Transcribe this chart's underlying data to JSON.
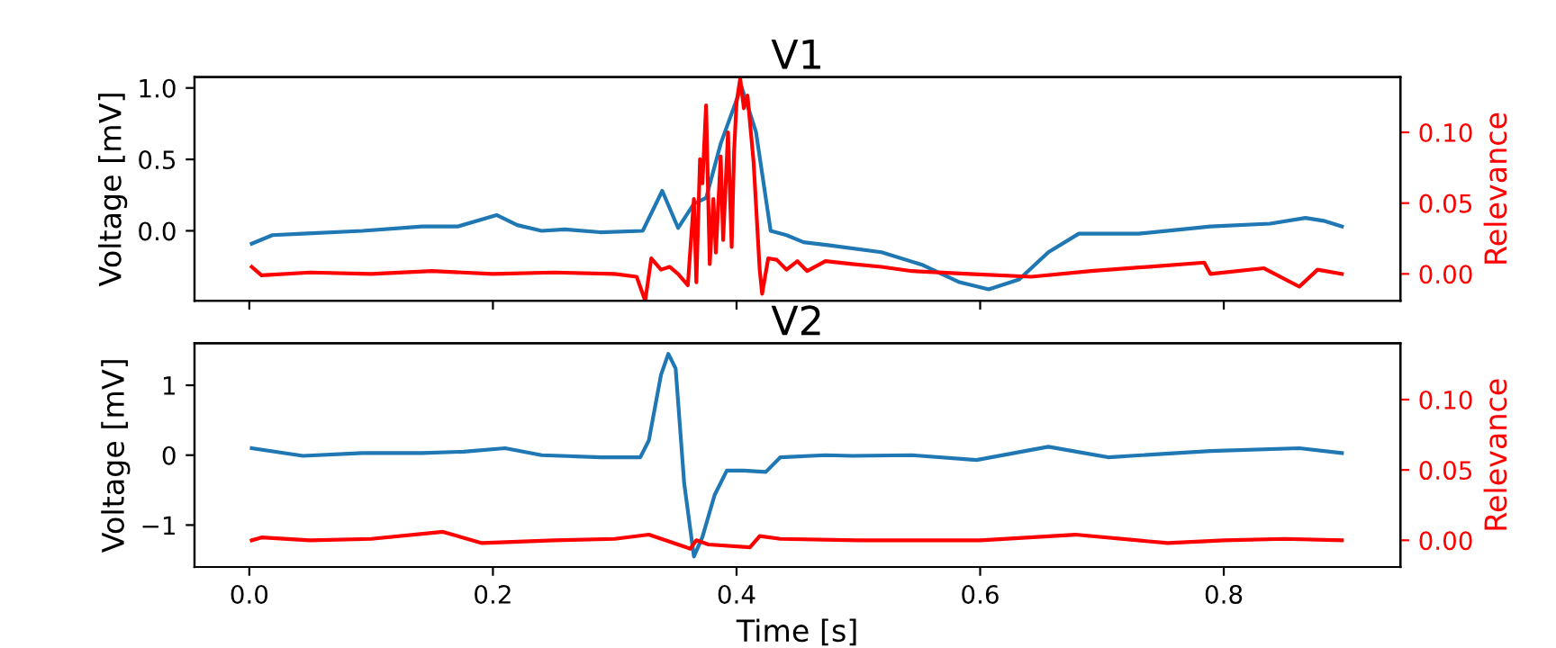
{
  "chart_data": [
    {
      "type": "line",
      "title": "V1",
      "ylabel": "Voltage [mV]",
      "y2label": "Relevance",
      "xlim": [
        -0.045,
        0.945
      ],
      "xticks": [
        {
          "value": 0,
          "label": null
        },
        {
          "value": 0.2,
          "label": null
        },
        {
          "value": 0.4,
          "label": null
        },
        {
          "value": 0.6,
          "label": null
        },
        {
          "value": 0.8,
          "label": null
        }
      ],
      "ylim": [
        -0.49,
        1.076
      ],
      "yticks": [
        {
          "value": 0,
          "label": "0.0"
        },
        {
          "value": 0.5,
          "label": "0.5"
        },
        {
          "value": 1,
          "label": "1.0"
        }
      ],
      "y2lim": [
        -0.019,
        0.139
      ],
      "y2ticks": [
        {
          "value": 0,
          "label": "0.00"
        },
        {
          "value": 0.05,
          "label": "0.05"
        },
        {
          "value": 0.1,
          "label": "0.10"
        }
      ],
      "tick_labels": "y",
      "series": [
        {
          "color": "#1f77b4",
          "x": [
            0.002,
            0.019,
            0.044,
            0.093,
            0.142,
            0.171,
            0.203,
            0.22,
            0.24,
            0.259,
            0.288,
            0.323,
            0.339,
            0.352,
            0.365,
            0.375,
            0.387,
            0.404,
            0.416,
            0.428,
            0.441,
            0.455,
            0.475,
            0.519,
            0.553,
            0.583,
            0.607,
            0.632,
            0.656,
            0.681,
            0.73,
            0.789,
            0.838,
            0.867,
            0.882,
            0.897
          ],
          "values": [
            -0.09,
            -0.03,
            -0.02,
            0.0,
            0.03,
            0.03,
            0.11,
            0.04,
            0.0,
            0.01,
            -0.01,
            0.0,
            0.28,
            0.02,
            0.19,
            0.23,
            0.61,
            1.01,
            0.69,
            0.0,
            -0.03,
            -0.08,
            -0.1,
            -0.15,
            -0.24,
            -0.36,
            -0.41,
            -0.34,
            -0.15,
            -0.02,
            -0.02,
            0.03,
            0.05,
            0.09,
            0.07,
            0.03
          ]
        },
        {
          "color": "#ff0000",
          "axis": "y2",
          "x": [
            0.002,
            0.01,
            0.05,
            0.1,
            0.15,
            0.2,
            0.25,
            0.3,
            0.318,
            0.325,
            0.33,
            0.338,
            0.345,
            0.352,
            0.36,
            0.365,
            0.367,
            0.37,
            0.372,
            0.375,
            0.378,
            0.381,
            0.383,
            0.387,
            0.389,
            0.393,
            0.396,
            0.398,
            0.4,
            0.403,
            0.406,
            0.409,
            0.414,
            0.419,
            0.421,
            0.426,
            0.433,
            0.441,
            0.45,
            0.458,
            0.473,
            0.495,
            0.519,
            0.544,
            0.591,
            0.642,
            0.691,
            0.784,
            0.789,
            0.833,
            0.862,
            0.877,
            0.897
          ],
          "values": [
            0.005,
            -0.001,
            0.001,
            0.0,
            0.002,
            0.0,
            0.001,
            0.0,
            -0.002,
            -0.019,
            0.011,
            0.003,
            0.005,
            0.0,
            -0.008,
            0.053,
            -0.006,
            0.081,
            0.064,
            0.119,
            0.007,
            0.053,
            0.015,
            0.083,
            0.024,
            0.1,
            0.019,
            0.087,
            0.121,
            0.138,
            0.117,
            0.126,
            0.079,
            0.003,
            -0.014,
            0.011,
            0.01,
            0.003,
            0.009,
            0.002,
            0.009,
            0.007,
            0.005,
            0.002,
            0.0,
            -0.002,
            0.002,
            0.008,
            0.0,
            0.004,
            -0.009,
            0.003,
            0.0
          ]
        }
      ]
    },
    {
      "type": "line",
      "title": "V2",
      "xlabel": "Time [s]",
      "ylabel": "Voltage [mV]",
      "y2label": "Relevance",
      "xlim": [
        -0.045,
        0.945
      ],
      "xticks": [
        {
          "value": 0,
          "label": "0.0"
        },
        {
          "value": 0.2,
          "label": "0.2"
        },
        {
          "value": 0.4,
          "label": "0.4"
        },
        {
          "value": 0.6,
          "label": "0.6"
        },
        {
          "value": 0.8,
          "label": "0.8"
        }
      ],
      "ylim": [
        -1.6,
        1.6
      ],
      "yticks": [
        {
          "value": -1,
          "label": "−1"
        },
        {
          "value": 0,
          "label": "0"
        },
        {
          "value": 1,
          "label": "1"
        }
      ],
      "y2lim": [
        -0.019,
        0.14
      ],
      "y2ticks": [
        {
          "value": 0,
          "label": "0.00"
        },
        {
          "value": 0.05,
          "label": "0.05"
        },
        {
          "value": 0.1,
          "label": "0.10"
        }
      ],
      "series": [
        {
          "color": "#1f77b4",
          "x": [
            0.002,
            0.044,
            0.093,
            0.142,
            0.176,
            0.21,
            0.24,
            0.289,
            0.321,
            0.328,
            0.338,
            0.344,
            0.35,
            0.357,
            0.365,
            0.372,
            0.382,
            0.392,
            0.406,
            0.424,
            0.436,
            0.473,
            0.495,
            0.544,
            0.597,
            0.656,
            0.705,
            0.789,
            0.862,
            0.897
          ],
          "values": [
            0.1,
            -0.01,
            0.03,
            0.03,
            0.05,
            0.1,
            0.0,
            -0.03,
            -0.03,
            0.21,
            1.15,
            1.45,
            1.24,
            -0.4,
            -1.45,
            -1.17,
            -0.57,
            -0.22,
            -0.22,
            -0.24,
            -0.03,
            0.0,
            -0.01,
            0.0,
            -0.07,
            0.12,
            -0.03,
            0.06,
            0.1,
            0.03
          ]
        },
        {
          "color": "#ff0000",
          "axis": "y2",
          "x": [
            0.002,
            0.01,
            0.05,
            0.1,
            0.159,
            0.191,
            0.25,
            0.3,
            0.328,
            0.362,
            0.367,
            0.377,
            0.411,
            0.419,
            0.436,
            0.5,
            0.6,
            0.678,
            0.754,
            0.8,
            0.85,
            0.897
          ],
          "values": [
            0.0,
            0.002,
            0.0,
            0.001,
            0.006,
            -0.002,
            0.0,
            0.001,
            0.004,
            -0.006,
            0.0,
            -0.003,
            -0.005,
            0.003,
            0.001,
            0.0,
            0.0,
            0.004,
            -0.002,
            0.0,
            0.001,
            0.0
          ]
        }
      ]
    }
  ]
}
